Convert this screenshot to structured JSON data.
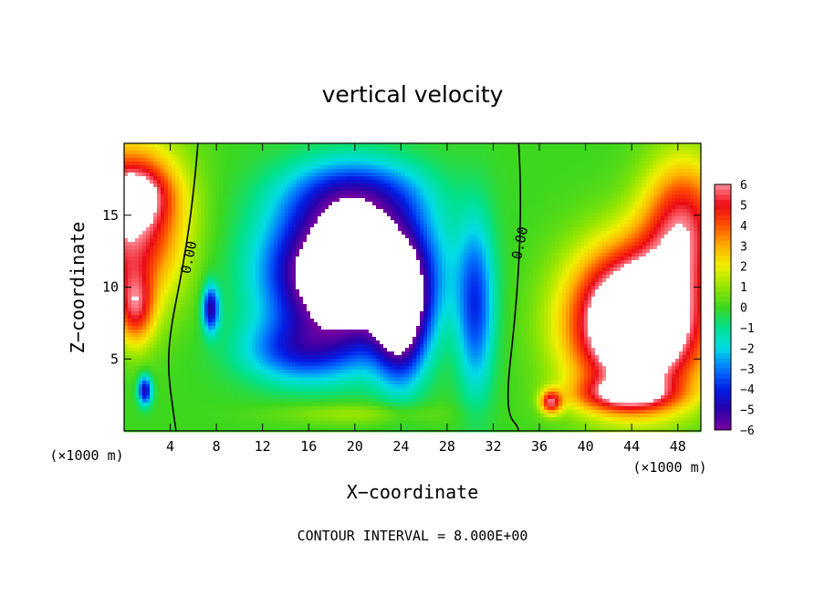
{
  "chart_data": {
    "type": "heatmap",
    "title": "vertical velocity",
    "xlabel": "X−coordinate",
    "ylabel": "Z−coordinate",
    "x_unit": "(×1000 m)",
    "y_unit": "(×1000 m)",
    "xlim": [
      0,
      50
    ],
    "ylim": [
      0,
      20
    ],
    "x_ticks": [
      4,
      8,
      12,
      16,
      20,
      24,
      28,
      32,
      36,
      40,
      44,
      48
    ],
    "y_ticks": [
      5,
      10,
      15
    ],
    "colorbar": {
      "min": -6,
      "max": 6,
      "ticks": [
        6,
        5,
        4,
        3,
        2,
        1,
        0,
        -1,
        -2,
        -3,
        -4,
        -5,
        -6
      ],
      "tick_labels": [
        "6",
        "5",
        "4",
        "3",
        "2",
        "1",
        "0",
        "−1",
        "−2",
        "−3",
        "−4",
        "−5",
        "−6"
      ]
    },
    "contour_labels": [
      {
        "text": "0.00",
        "x": 6.0,
        "z": 12.0
      },
      {
        "text": "0.00",
        "x": 34.7,
        "z": 13.0
      }
    ],
    "note": "CONTOUR INTERVAL = 8.000E+00",
    "field_features": [
      {
        "kind": "updraft",
        "x": 0.6,
        "z": 14.5,
        "sx": 4.5,
        "sz": 5.5,
        "amp": 6
      },
      {
        "kind": "updraft",
        "x": 1.0,
        "z": 8.5,
        "sx": 1.6,
        "sz": 2.5,
        "amp": 4
      },
      {
        "kind": "updraft",
        "x": 0.8,
        "z": 16.5,
        "sx": 3.0,
        "sz": 2.0,
        "amp": 3
      },
      {
        "kind": "updraft",
        "x": 44.5,
        "z": 7.5,
        "sx": 5.5,
        "sz": 5.0,
        "amp": 11
      },
      {
        "kind": "updraft",
        "x": 48.5,
        "z": 14.5,
        "sx": 3.5,
        "sz": 4.5,
        "amp": 5
      },
      {
        "kind": "updraft",
        "x": 43.5,
        "z": 2.5,
        "sx": 4.5,
        "sz": 1.2,
        "amp": 4
      },
      {
        "kind": "updraft",
        "x": 37.0,
        "z": 2.0,
        "sx": 0.9,
        "sz": 0.8,
        "amp": 5
      },
      {
        "kind": "downdraft",
        "x": 19.5,
        "z": 11.0,
        "sx": 6.5,
        "sz": 4.8,
        "amp": -10
      },
      {
        "kind": "downdraft",
        "x": 24.0,
        "z": 8.0,
        "sx": 2.2,
        "sz": 4.5,
        "amp": -6
      },
      {
        "kind": "downdraft",
        "x": 15.0,
        "z": 5.5,
        "sx": 5.0,
        "sz": 2.2,
        "amp": -3
      },
      {
        "kind": "downdraft",
        "x": 30.5,
        "z": 8.5,
        "sx": 1.6,
        "sz": 6.0,
        "amp": -3.5
      },
      {
        "kind": "downdraft",
        "x": 7.5,
        "z": 8.5,
        "sx": 0.7,
        "sz": 1.6,
        "amp": -5
      },
      {
        "kind": "downdraft",
        "x": 1.8,
        "z": 2.8,
        "sx": 0.6,
        "sz": 1.0,
        "amp": -5
      },
      {
        "kind": "downdraft",
        "x": 20.0,
        "z": 16.5,
        "sx": 6.0,
        "sz": 2.5,
        "amp": -3
      },
      {
        "kind": "updraft",
        "x": 20.0,
        "z": 1.2,
        "sx": 7.0,
        "sz": 0.8,
        "amp": 1.2
      }
    ]
  }
}
